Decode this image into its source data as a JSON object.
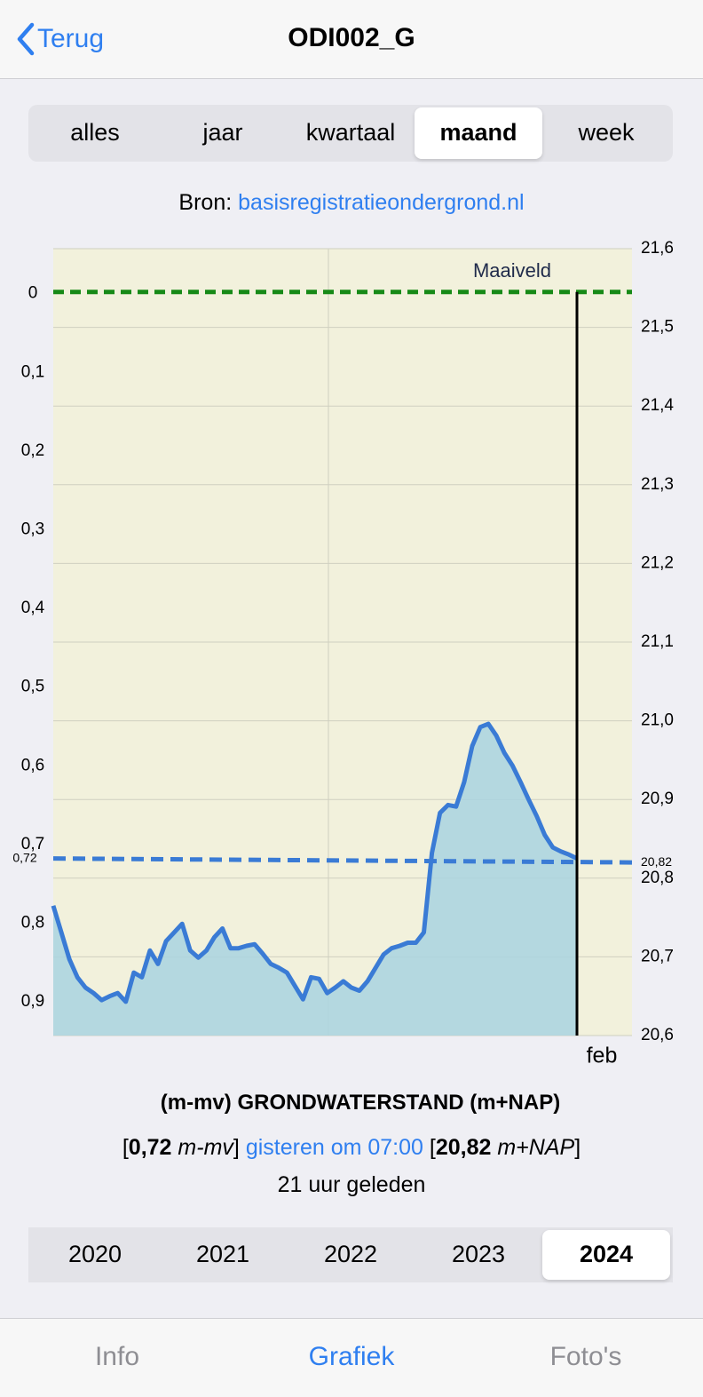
{
  "nav": {
    "back": "Terug",
    "title": "ODI002_G"
  },
  "period_tabs": {
    "items": [
      "alles",
      "jaar",
      "kwartaal",
      "maand",
      "week"
    ],
    "selected": 3
  },
  "source": {
    "label": "Bron:",
    "link": "basisregistratieondergrond.nl"
  },
  "chart_data": {
    "type": "line",
    "series": [
      {
        "name": "GRONDWATERSTAND",
        "color": "#3a7bd5",
        "fill": "#a9d3e0",
        "values": [
          0.78,
          0.814,
          0.848,
          0.871,
          0.884,
          0.891,
          0.9,
          0.895,
          0.891,
          0.902,
          0.865,
          0.871,
          0.837,
          0.854,
          0.825,
          0.814,
          0.803,
          0.837,
          0.846,
          0.837,
          0.82,
          0.809,
          0.834,
          0.834,
          0.831,
          0.829,
          0.841,
          0.854,
          0.859,
          0.865,
          0.882,
          0.899,
          0.871,
          0.873,
          0.891,
          0.884,
          0.876,
          0.884,
          0.888,
          0.876,
          0.859,
          0.842,
          0.834,
          0.831,
          0.827,
          0.827,
          0.814,
          0.713,
          0.662,
          0.652,
          0.654,
          0.623,
          0.577,
          0.553,
          0.549,
          0.564,
          0.586,
          0.602,
          0.623,
          0.645,
          0.666,
          0.69,
          0.706,
          0.711,
          0.715,
          0.72
        ]
      }
    ],
    "ylim": [
      -0.055,
      0.945
    ],
    "y_inverted": true,
    "yticks": [
      0,
      {
        "value": 0.1,
        "label": "0,1"
      },
      {
        "value": 0.2,
        "label": "0,2"
      },
      {
        "value": 0.3,
        "label": "0,3"
      },
      {
        "value": 0.4,
        "label": "0,4"
      },
      {
        "value": 0.5,
        "label": "0,5"
      },
      {
        "value": 0.6,
        "label": "0,6"
      },
      {
        "value": 0.7,
        "label": "0,7"
      },
      {
        "value": 0.8,
        "label": "0,8"
      },
      {
        "value": 0.9,
        "label": "0,9"
      }
    ],
    "y2lim": [
      20.6,
      21.6
    ],
    "y2ticks": [
      {
        "value": 20.6,
        "label": "20,6"
      },
      {
        "value": 20.7,
        "label": "20,7"
      },
      {
        "value": 20.8,
        "label": "20,8"
      },
      {
        "value": 20.9,
        "label": "20,9"
      },
      {
        "value": 21.0,
        "label": "21,0"
      },
      {
        "value": 21.1,
        "label": "21,1"
      },
      {
        "value": 21.2,
        "label": "21,2"
      },
      {
        "value": 21.3,
        "label": "21,3"
      },
      {
        "value": 21.4,
        "label": "21,4"
      },
      {
        "value": 21.5,
        "label": "21,5"
      },
      {
        "value": 21.6,
        "label": "21,6"
      }
    ],
    "grid": true,
    "reference_lines": [
      {
        "name": "Maaiveld",
        "value": 0,
        "color": "#178a17"
      },
      {
        "value": 0.72,
        "label": "0,72",
        "y2_value": 20.82,
        "y2_label": "20,82",
        "color": "#3a7bd5"
      }
    ],
    "x_end_label": "feb",
    "title": "(m-mv) GRONDWATERSTAND (m+NAP)"
  },
  "status": {
    "open": "[",
    "close": "]",
    "depth": "0,72",
    "depth_unit": "m-mv",
    "time": "gisteren om 07:00",
    "level": "20,82",
    "level_unit": "m+NAP",
    "ago": "21 uur geleden"
  },
  "year_tabs": {
    "items": [
      "2020",
      "2021",
      "2022",
      "2023",
      "2024"
    ],
    "selected": 4
  },
  "tab_bar": {
    "items": [
      "Info",
      "Grafiek",
      "Foto's"
    ],
    "selected": 1
  }
}
